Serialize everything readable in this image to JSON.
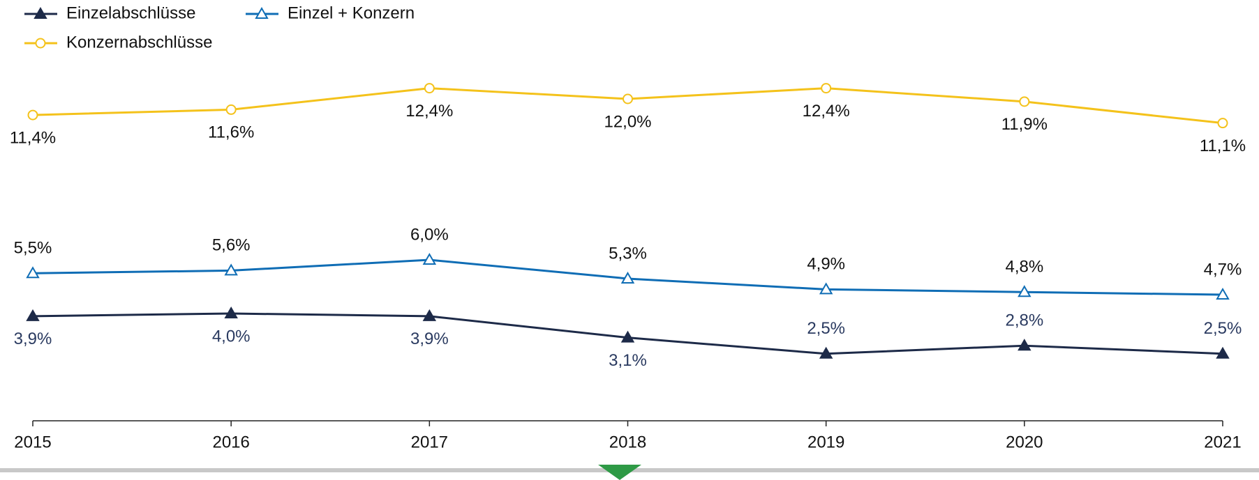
{
  "chart_data": {
    "type": "line",
    "categories": [
      "2015",
      "2016",
      "2017",
      "2018",
      "2019",
      "2020",
      "2021"
    ],
    "series": [
      {
        "name": "Einzelabschlüsse",
        "color": "#1d2a48",
        "marker": "filled-triangle",
        "values": [
          3.9,
          4.0,
          3.9,
          3.1,
          2.5,
          2.8,
          2.5
        ],
        "value_labels": [
          "3,9%",
          "4,0%",
          "3,9%",
          "3,1%",
          "2,5%",
          "2,8%",
          "2,5%"
        ]
      },
      {
        "name": "Einzel + Konzern",
        "color": "#0f6db5",
        "marker": "hollow-triangle",
        "values": [
          5.5,
          5.6,
          6.0,
          5.3,
          4.9,
          4.8,
          4.7
        ],
        "value_labels": [
          "5,5%",
          "5,6%",
          "6,0%",
          "5,3%",
          "4,9%",
          "4,8%",
          "4,7%"
        ]
      },
      {
        "name": "Konzernabschlüsse",
        "color": "#f4c21b",
        "marker": "hollow-circle",
        "values": [
          11.4,
          11.6,
          12.4,
          12.0,
          12.4,
          11.9,
          11.1
        ],
        "value_labels": [
          "11,4%",
          "11,6%",
          "12,4%",
          "12,0%",
          "12,4%",
          "11,9%",
          "11,1%"
        ]
      }
    ],
    "ylim": [
      0,
      14
    ]
  }
}
